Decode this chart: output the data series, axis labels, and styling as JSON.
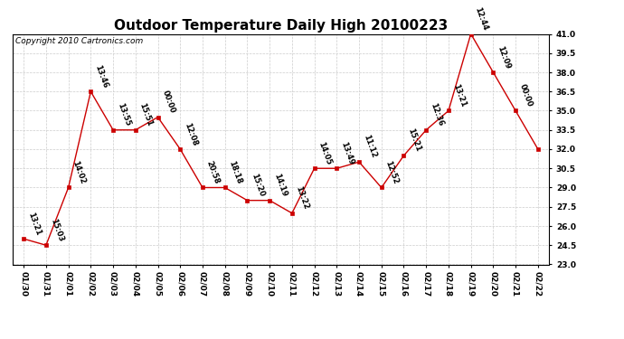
{
  "title": "Outdoor Temperature Daily High 20100223",
  "copyright": "Copyright 2010 Cartronics.com",
  "x_labels": [
    "01/30",
    "01/31",
    "02/01",
    "02/02",
    "02/03",
    "02/04",
    "02/05",
    "02/06",
    "02/07",
    "02/08",
    "02/09",
    "02/10",
    "02/11",
    "02/12",
    "02/13",
    "02/14",
    "02/15",
    "02/16",
    "02/17",
    "02/18",
    "02/19",
    "02/20",
    "02/21",
    "02/22"
  ],
  "y_values": [
    25.0,
    24.5,
    29.0,
    36.5,
    33.5,
    33.5,
    34.5,
    32.0,
    29.0,
    29.0,
    28.0,
    28.0,
    27.0,
    30.5,
    30.5,
    31.0,
    29.0,
    31.5,
    33.5,
    35.0,
    41.0,
    38.0,
    35.0,
    32.0
  ],
  "time_labels": [
    "13:21",
    "15:03",
    "14:02",
    "13:46",
    "13:55",
    "15:51",
    "00:00",
    "12:08",
    "20:58",
    "18:18",
    "15:20",
    "14:19",
    "13:22",
    "14:05",
    "13:49",
    "11:12",
    "12:52",
    "15:21",
    "12:36",
    "13:21",
    "12:44",
    "12:09",
    "00:00",
    ""
  ],
  "ylim": [
    23.0,
    41.0
  ],
  "ytick_values": [
    23.0,
    24.5,
    26.0,
    27.5,
    29.0,
    30.5,
    32.0,
    33.5,
    35.0,
    36.5,
    38.0,
    39.5,
    41.0
  ],
  "line_color": "#cc0000",
  "bg_color": "white",
  "grid_color": "#cccccc",
  "title_fontsize": 11,
  "tick_fontsize": 6.5,
  "annot_fontsize": 6,
  "copyright_fontsize": 6.5
}
